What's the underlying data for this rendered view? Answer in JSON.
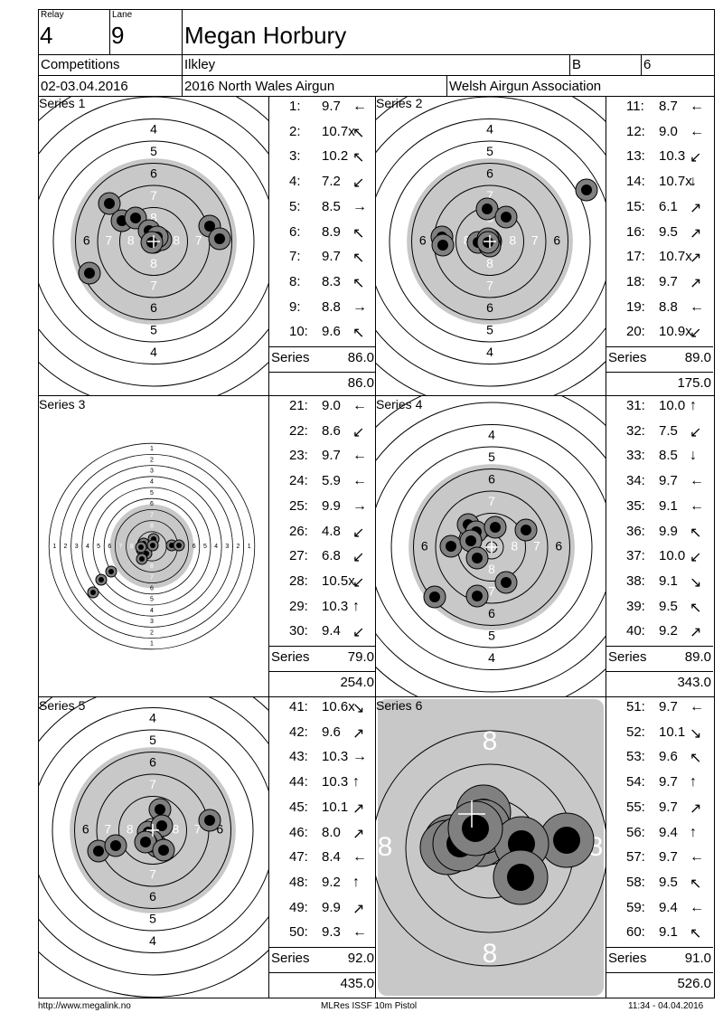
{
  "header": {
    "relay_label": "Relay",
    "relay": "4",
    "lane_label": "Lane",
    "lane": "9",
    "name": "Megan Horbury",
    "competitions_label": "Competitions",
    "venue": "Ilkley",
    "group": "B",
    "group_no": "6",
    "date": "02-03.04.2016",
    "event": "2016 North Wales Airgun",
    "organiser": "Welsh Airgun Association"
  },
  "series": [
    {
      "title": "Series 1",
      "shots": [
        {
          "n": "1:",
          "v": "9.7",
          "dir": "←"
        },
        {
          "n": "2:",
          "v": "10.7x",
          "dir": "↖"
        },
        {
          "n": "3:",
          "v": "10.2",
          "dir": "↖"
        },
        {
          "n": "4:",
          "v": "7.2",
          "dir": "↙"
        },
        {
          "n": "5:",
          "v": "8.5",
          "dir": "→"
        },
        {
          "n": "6:",
          "v": "8.9",
          "dir": "↖"
        },
        {
          "n": "7:",
          "v": "9.7",
          "dir": "↖"
        },
        {
          "n": "8:",
          "v": "8.3",
          "dir": "↖"
        },
        {
          "n": "9:",
          "v": "8.8",
          "dir": "→"
        },
        {
          "n": "10:",
          "v": "9.6",
          "dir": "↖"
        }
      ],
      "series_label": "Series",
      "series_total": "86.0",
      "cum_total": "86.0"
    },
    {
      "title": "Series 2",
      "shots": [
        {
          "n": "11:",
          "v": "8.7",
          "dir": "←"
        },
        {
          "n": "12:",
          "v": "9.0",
          "dir": "←"
        },
        {
          "n": "13:",
          "v": "10.3",
          "dir": "↙"
        },
        {
          "n": "14:",
          "v": "10.7x",
          "dir": "↓"
        },
        {
          "n": "15:",
          "v": "6.1",
          "dir": "↗"
        },
        {
          "n": "16:",
          "v": "9.5",
          "dir": "↗"
        },
        {
          "n": "17:",
          "v": "10.7x",
          "dir": "↗"
        },
        {
          "n": "18:",
          "v": "9.7",
          "dir": "↗"
        },
        {
          "n": "19:",
          "v": "8.8",
          "dir": "←"
        },
        {
          "n": "20:",
          "v": "10.9x",
          "dir": "↙"
        }
      ],
      "series_label": "Series",
      "series_total": "89.0",
      "cum_total": "175.0"
    },
    {
      "title": "Series 3",
      "shots": [
        {
          "n": "21:",
          "v": "9.0",
          "dir": "←"
        },
        {
          "n": "22:",
          "v": "8.6",
          "dir": "↙"
        },
        {
          "n": "23:",
          "v": "9.7",
          "dir": "←"
        },
        {
          "n": "24:",
          "v": "5.9",
          "dir": "←"
        },
        {
          "n": "25:",
          "v": "9.9",
          "dir": "→"
        },
        {
          "n": "26:",
          "v": "4.8",
          "dir": "↙"
        },
        {
          "n": "27:",
          "v": "6.8",
          "dir": "↙"
        },
        {
          "n": "28:",
          "v": "10.5x",
          "dir": "↙"
        },
        {
          "n": "29:",
          "v": "10.3",
          "dir": "↑"
        },
        {
          "n": "30:",
          "v": "9.4",
          "dir": "↙"
        }
      ],
      "series_label": "Series",
      "series_total": "79.0",
      "cum_total": "254.0"
    },
    {
      "title": "Series 4",
      "shots": [
        {
          "n": "31:",
          "v": "10.0",
          "dir": "↑"
        },
        {
          "n": "32:",
          "v": "7.5",
          "dir": "↙"
        },
        {
          "n": "33:",
          "v": "8.5",
          "dir": "↓"
        },
        {
          "n": "34:",
          "v": "9.7",
          "dir": "←"
        },
        {
          "n": "35:",
          "v": "9.1",
          "dir": "←"
        },
        {
          "n": "36:",
          "v": "9.9",
          "dir": "↖"
        },
        {
          "n": "37:",
          "v": "10.0",
          "dir": "↙"
        },
        {
          "n": "38:",
          "v": "9.1",
          "dir": "↘"
        },
        {
          "n": "39:",
          "v": "9.5",
          "dir": "↖"
        },
        {
          "n": "40:",
          "v": "9.2",
          "dir": "↗"
        }
      ],
      "series_label": "Series",
      "series_total": "89.0",
      "cum_total": "343.0"
    },
    {
      "title": "Series 5",
      "shots": [
        {
          "n": "41:",
          "v": "10.6x",
          "dir": "↘"
        },
        {
          "n": "42:",
          "v": "9.6",
          "dir": "↗"
        },
        {
          "n": "43:",
          "v": "10.3",
          "dir": "→"
        },
        {
          "n": "44:",
          "v": "10.3",
          "dir": "↑"
        },
        {
          "n": "45:",
          "v": "10.1",
          "dir": "↗"
        },
        {
          "n": "46:",
          "v": "8.0",
          "dir": "↗"
        },
        {
          "n": "47:",
          "v": "8.4",
          "dir": "←"
        },
        {
          "n": "48:",
          "v": "9.2",
          "dir": "↑"
        },
        {
          "n": "49:",
          "v": "9.9",
          "dir": "↗"
        },
        {
          "n": "50:",
          "v": "9.3",
          "dir": "←"
        }
      ],
      "series_label": "Series",
      "series_total": "92.0",
      "cum_total": "435.0"
    },
    {
      "title": "Series 6",
      "shots": [
        {
          "n": "51:",
          "v": "9.7",
          "dir": "←"
        },
        {
          "n": "52:",
          "v": "10.1",
          "dir": "↘"
        },
        {
          "n": "53:",
          "v": "9.6",
          "dir": "↖"
        },
        {
          "n": "54:",
          "v": "9.7",
          "dir": "↑"
        },
        {
          "n": "55:",
          "v": "9.7",
          "dir": "↗"
        },
        {
          "n": "56:",
          "v": "9.4",
          "dir": "↑"
        },
        {
          "n": "57:",
          "v": "9.7",
          "dir": "←"
        },
        {
          "n": "58:",
          "v": "9.5",
          "dir": "↖"
        },
        {
          "n": "59:",
          "v": "9.4",
          "dir": "←"
        },
        {
          "n": "60:",
          "v": "9.1",
          "dir": "↖"
        }
      ],
      "series_label": "Series",
      "series_total": "91.0",
      "cum_total": "526.0"
    }
  ],
  "footer": {
    "url": "http://www.megalink.no",
    "system": "MLRes ISSF 10m Pistol",
    "timestamp": "11:34 - 04.04.2016"
  },
  "colors": {
    "black_zone": "#c8c8c8",
    "shot_ring": "#808080",
    "shot_core": "#000000"
  }
}
